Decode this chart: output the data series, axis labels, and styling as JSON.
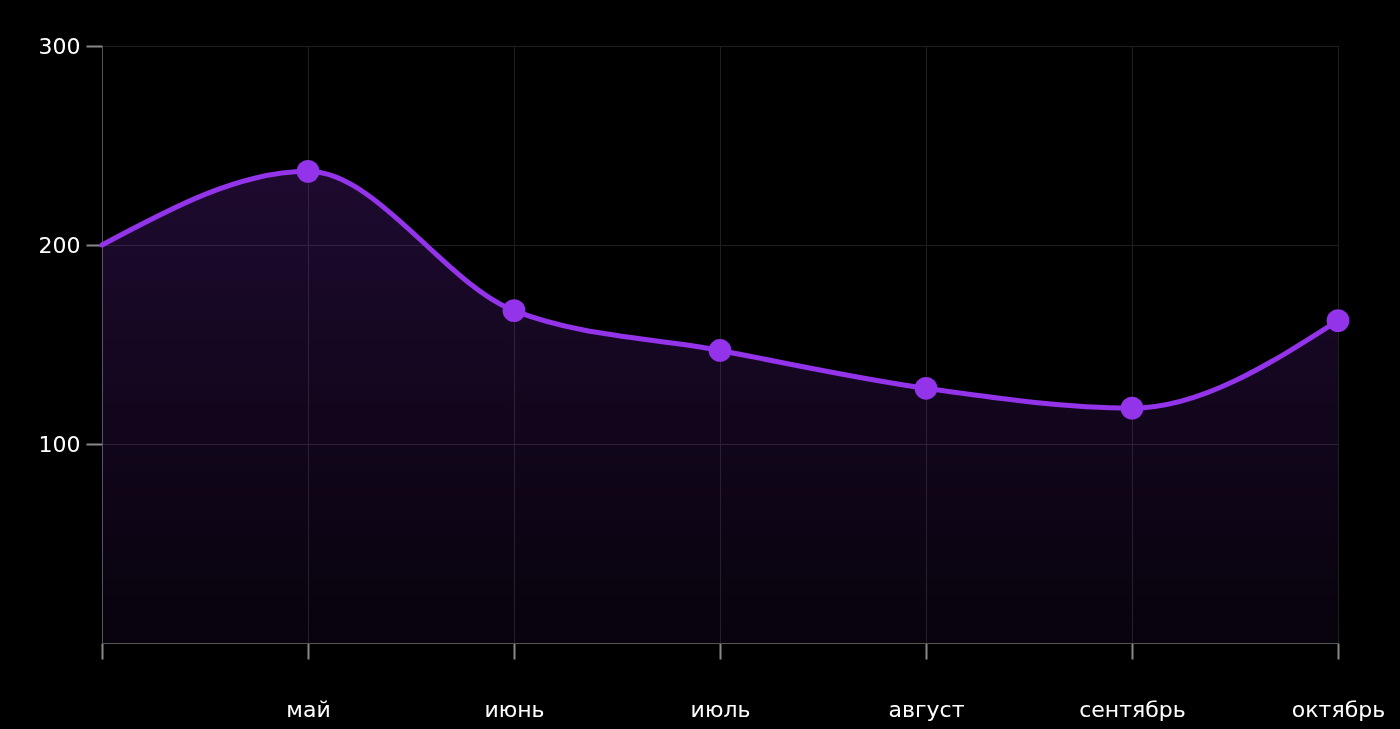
{
  "chart_data": {
    "type": "area",
    "categories": [
      null,
      "май",
      "июнь",
      "июль",
      "август",
      "сентябрь",
      "октябрь"
    ],
    "series": [
      {
        "color": "#9333ea",
        "values": [
          200,
          237,
          167,
          147,
          128,
          118,
          162
        ]
      }
    ],
    "ylim": [
      0,
      300
    ],
    "yticks": [
      100,
      200,
      300
    ],
    "grid": true,
    "marker": "circle"
  }
}
